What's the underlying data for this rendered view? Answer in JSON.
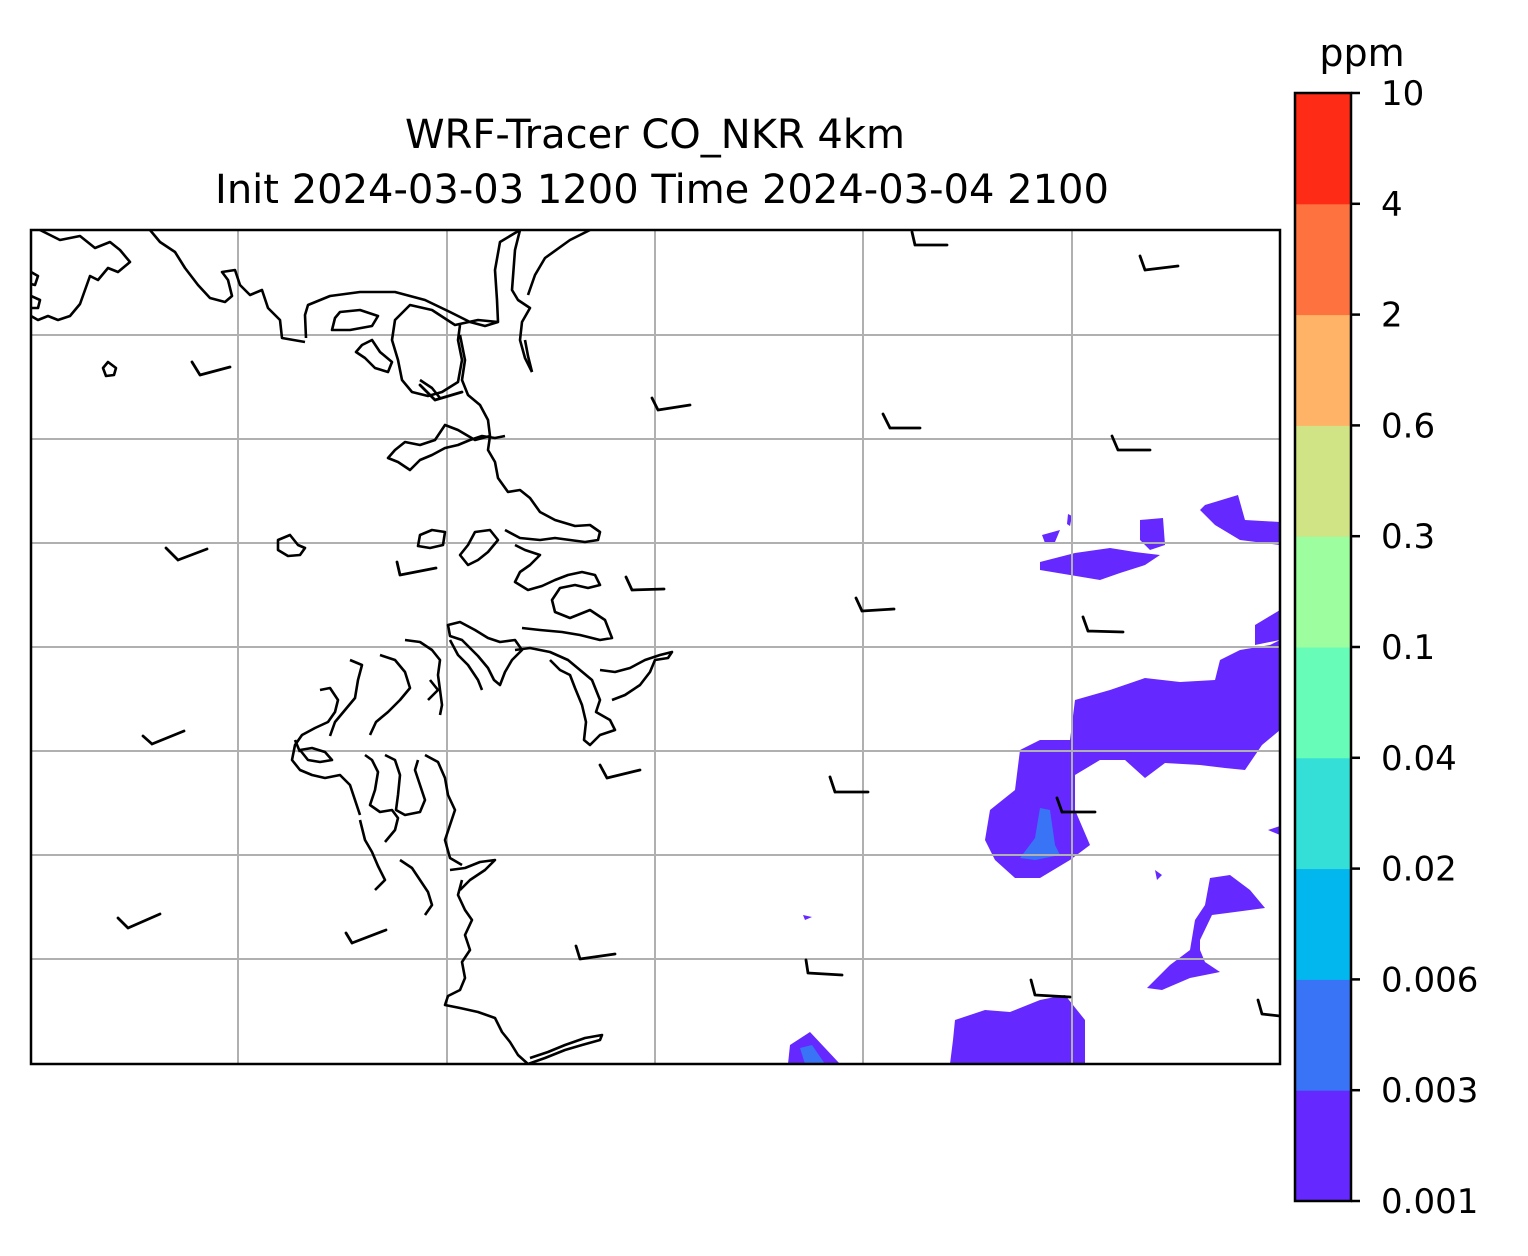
{
  "title": {
    "line1": "WRF-Tracer CO_NKR 4km",
    "line2": "Init 2024-03-03 1200 Time 2024-03-04 2100"
  },
  "colorbar": {
    "unit": "ppm",
    "levels": [
      "0.001",
      "0.003",
      "0.006",
      "0.02",
      "0.04",
      "0.1",
      "0.3",
      "0.6",
      "2",
      "4",
      "10"
    ],
    "colors": [
      "#6528ff",
      "#3874f5",
      "#02b6ee",
      "#33dfd6",
      "#68fcb9",
      "#9cfe9e",
      "#d0e385",
      "#feb366",
      "#fe7240",
      "#fe2b16"
    ]
  },
  "map": {
    "grid_color": "#b0b0b0",
    "coastline_color": "#000000",
    "wind_barbs": "black"
  }
}
